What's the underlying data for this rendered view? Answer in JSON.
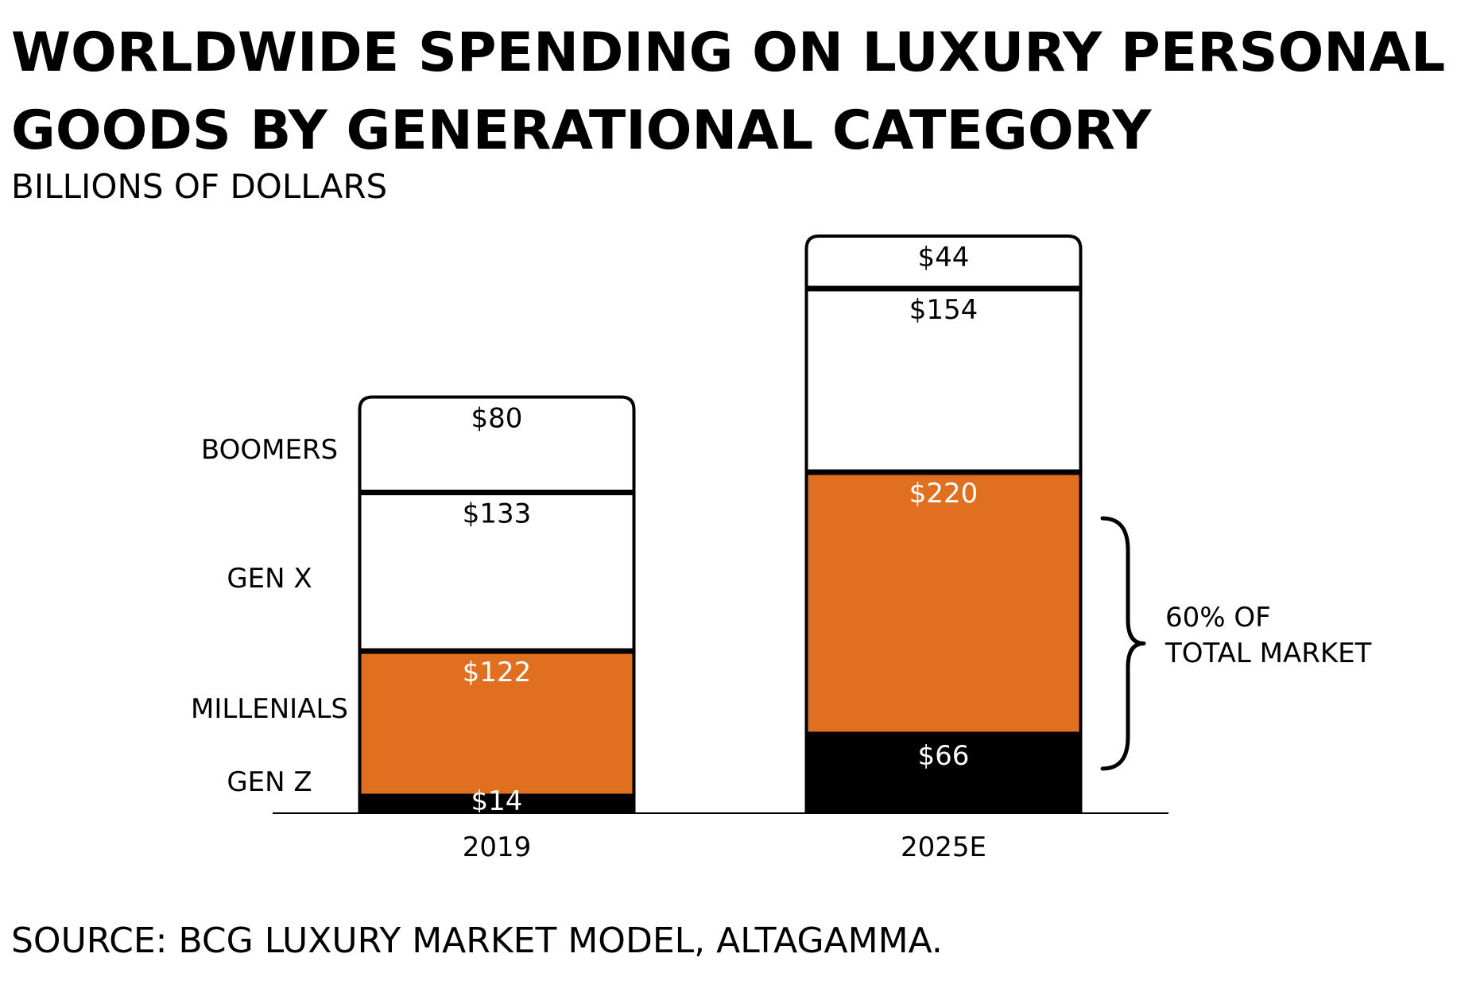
{
  "title_lines": [
    "WORLDWIDE SPENDING ON LUXURY PERSONAL",
    "GOODS BY GENERATIONAL CATEGORY"
  ],
  "subtitle": "BILLIONS OF DOLLARS",
  "source": "SOURCE: BCG LUXURY MARKET MODEL, ALTAGAMMA.",
  "colors": {
    "orange": "#e07020",
    "black": "#000000",
    "white": "#ffffff"
  },
  "chart_data": {
    "type": "bar",
    "stacked": true,
    "categories": [
      "2019",
      "2025E"
    ],
    "series": [
      {
        "name": "GEN Z",
        "values": [
          14,
          66
        ],
        "labels": [
          "$14",
          "$66"
        ],
        "color": "#000000",
        "label_color": "#ffffff"
      },
      {
        "name": "MILLENIALS",
        "values": [
          122,
          220
        ],
        "labels": [
          "$122",
          "$220"
        ],
        "color": "#e07020",
        "label_color": "#ffffff"
      },
      {
        "name": "GEN X",
        "values": [
          133,
          154
        ],
        "labels": [
          "$133",
          "$154"
        ],
        "color": "#ffffff",
        "label_color": "#000000"
      },
      {
        "name": "BOOMERS",
        "values": [
          80,
          44
        ],
        "labels": [
          "$80",
          "$44"
        ],
        "color": "#ffffff",
        "label_color": "#000000"
      }
    ],
    "annotation": {
      "lines": [
        "60% OF",
        "TOTAL MARKET"
      ],
      "category": "2025E",
      "spans_series": [
        "GEN Z",
        "MILLENIALS"
      ]
    },
    "legend": "left",
    "grid": false
  }
}
